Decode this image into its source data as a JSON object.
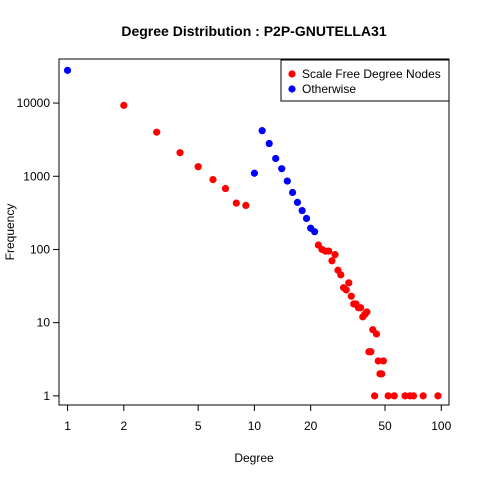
{
  "chart_data": {
    "type": "scatter",
    "title": "Degree Distribution : P2P-GNUTELLA31",
    "xlabel": "Degree",
    "ylabel": "Frequency",
    "x_scale": "log",
    "y_scale": "log",
    "xlim": [
      0.9,
      110
    ],
    "ylim": [
      0.75,
      40000
    ],
    "x_ticks": [
      1,
      2,
      5,
      10,
      20,
      50,
      100
    ],
    "y_ticks": [
      1,
      10,
      100,
      1000,
      10000
    ],
    "grid": false,
    "legend_position": "top-right",
    "series": [
      {
        "name": "Scale Free Degree Nodes",
        "color": "#ff0000",
        "points": [
          [
            2,
            9300
          ],
          [
            3,
            4000
          ],
          [
            4,
            2100
          ],
          [
            5,
            1350
          ],
          [
            6,
            900
          ],
          [
            7,
            680
          ],
          [
            8,
            430
          ],
          [
            9,
            400
          ],
          [
            22,
            115
          ],
          [
            23,
            100
          ],
          [
            24,
            95
          ],
          [
            25,
            95
          ],
          [
            26,
            70
          ],
          [
            27,
            85
          ],
          [
            28,
            52
          ],
          [
            29,
            45
          ],
          [
            30,
            30
          ],
          [
            31,
            28
          ],
          [
            32,
            35
          ],
          [
            33,
            23
          ],
          [
            34,
            18
          ],
          [
            35,
            18
          ],
          [
            36,
            16
          ],
          [
            37,
            16
          ],
          [
            38,
            12
          ],
          [
            39,
            13
          ],
          [
            40,
            14
          ],
          [
            41,
            4
          ],
          [
            42,
            4
          ],
          [
            43,
            8
          ],
          [
            44,
            1
          ],
          [
            45,
            7
          ],
          [
            46,
            3
          ],
          [
            47,
            2
          ],
          [
            48,
            2
          ],
          [
            49,
            3
          ],
          [
            52,
            1
          ],
          [
            56,
            1
          ],
          [
            64,
            1
          ],
          [
            68,
            1
          ],
          [
            71,
            1
          ],
          [
            80,
            1
          ],
          [
            96,
            1
          ]
        ]
      },
      {
        "name": "Otherwise",
        "color": "#0000ff",
        "points": [
          [
            1,
            28000
          ],
          [
            10,
            1100
          ],
          [
            11,
            4200
          ],
          [
            12,
            2800
          ],
          [
            13,
            1750
          ],
          [
            14,
            1270
          ],
          [
            15,
            860
          ],
          [
            16,
            600
          ],
          [
            17,
            440
          ],
          [
            18,
            340
          ],
          [
            19,
            265
          ],
          [
            20,
            195
          ],
          [
            21,
            175
          ]
        ]
      }
    ]
  }
}
